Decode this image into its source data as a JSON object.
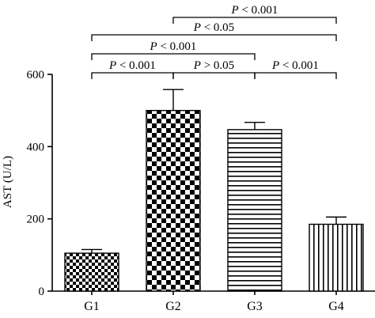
{
  "chart_data": {
    "type": "bar",
    "ylabel": "AST (U/L)",
    "xlabel": "",
    "ylim": [
      0,
      600
    ],
    "yticks": [
      0,
      200,
      400,
      600
    ],
    "categories": [
      "G1",
      "G2",
      "G3",
      "G4"
    ],
    "values": [
      105,
      500,
      447,
      185
    ],
    "errors": [
      10,
      58,
      20,
      20
    ],
    "patterns": [
      "checker-fine",
      "checker-coarse",
      "horizontal-lines",
      "vertical-lines"
    ],
    "significance": [
      {
        "from": "G1",
        "to": "G2",
        "label": "P < 0.001"
      },
      {
        "from": "G2",
        "to": "G3",
        "label": "P > 0.05"
      },
      {
        "from": "G3",
        "to": "G4",
        "label": "P < 0.001"
      },
      {
        "from": "G1",
        "to": "G3",
        "label": "P < 0.001"
      },
      {
        "from": "G1",
        "to": "G4",
        "label": "P < 0.05"
      },
      {
        "from": "G2",
        "to": "G4",
        "label": "P < 0.001"
      }
    ]
  }
}
